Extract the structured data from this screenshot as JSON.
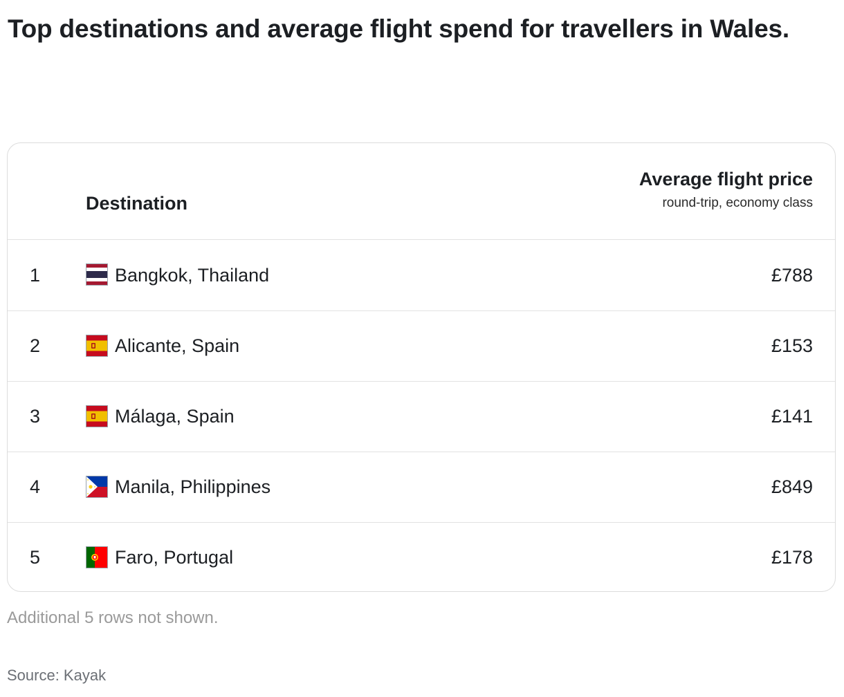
{
  "title": "Top destinations and average flight spend for travellers in Wales.",
  "table": {
    "header": {
      "destination": "Destination",
      "price_title": "Average flight price",
      "price_subtitle": "round-trip, economy class"
    },
    "rows": [
      {
        "rank": "1",
        "flag_icon": "thailand-flag-icon",
        "destination": "Bangkok, Thailand",
        "price": "£788"
      },
      {
        "rank": "2",
        "flag_icon": "spain-flag-icon",
        "destination": "Alicante, Spain",
        "price": "£153"
      },
      {
        "rank": "3",
        "flag_icon": "spain-flag-icon",
        "destination": "Málaga, Spain",
        "price": "£141"
      },
      {
        "rank": "4",
        "flag_icon": "philippines-flag-icon",
        "destination": "Manila, Philippines",
        "price": "£849"
      },
      {
        "rank": "5",
        "flag_icon": "portugal-flag-icon",
        "destination": "Faro, Portugal",
        "price": "£178"
      }
    ]
  },
  "note": "Additional 5 rows not shown.",
  "source": "Source: Kayak",
  "colors": {
    "border": "#dcdcdc",
    "text": "#1c1f23",
    "note": "#9a9a9a",
    "source": "#6b6f75"
  }
}
